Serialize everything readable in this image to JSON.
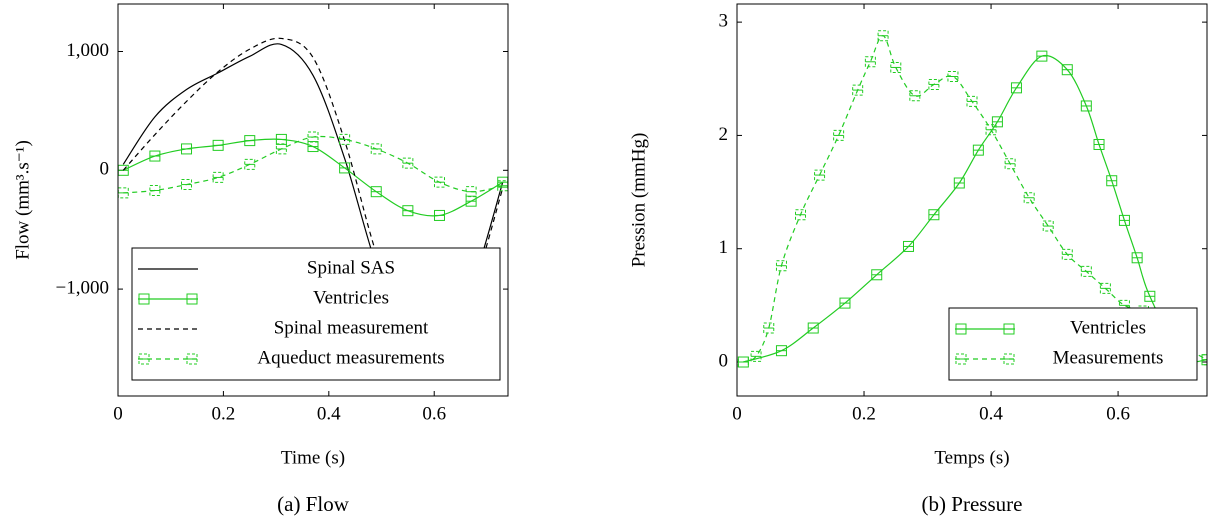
{
  "chart_data": [
    {
      "type": "line",
      "caption": "(a) Flow",
      "xlabel": "Time (s)",
      "ylabel": "Flow (mm³.s⁻¹)",
      "xlim": [
        0,
        0.74
      ],
      "ylim": [
        -1900,
        1400
      ],
      "xticks": [
        0,
        0.2,
        0.4,
        0.6
      ],
      "yticks": [
        {
          "value": -1000,
          "label": "−1,000"
        },
        0,
        {
          "value": 1000,
          "label": "1,000"
        }
      ],
      "legend": "lower left",
      "series": [
        {
          "name": "Spinal SAS",
          "color": "#000000",
          "style": "solid",
          "marker": "none",
          "x": [
            0.01,
            0.07,
            0.13,
            0.19,
            0.25,
            0.31,
            0.37,
            0.43,
            0.49,
            0.55,
            0.61,
            0.67,
            0.73
          ],
          "values": [
            50,
            450,
            680,
            820,
            960,
            1060,
            800,
            100,
            -800,
            -1450,
            -1550,
            -1000,
            -100
          ]
        },
        {
          "name": "Ventricles",
          "color": "#22cc22",
          "style": "solid",
          "marker": "square",
          "x": [
            0.01,
            0.07,
            0.13,
            0.19,
            0.25,
            0.31,
            0.37,
            0.43,
            0.49,
            0.55,
            0.61,
            0.67,
            0.73
          ],
          "values": [
            0,
            120,
            180,
            210,
            250,
            260,
            200,
            20,
            -180,
            -340,
            -380,
            -260,
            -100
          ]
        },
        {
          "name": "Spinal measurement",
          "color": "#000000",
          "style": "dashed",
          "marker": "none",
          "x": [
            0.01,
            0.07,
            0.13,
            0.19,
            0.25,
            0.31,
            0.37,
            0.43,
            0.49,
            0.55,
            0.61,
            0.67,
            0.73
          ],
          "values": [
            0,
            300,
            580,
            830,
            1020,
            1110,
            950,
            250,
            -700,
            -1400,
            -1550,
            -1050,
            -150
          ]
        },
        {
          "name": "Aqueduct measurements",
          "color": "#22cc22",
          "style": "dashed",
          "marker": "square",
          "x": [
            0.01,
            0.07,
            0.13,
            0.19,
            0.25,
            0.31,
            0.37,
            0.43,
            0.49,
            0.55,
            0.61,
            0.67,
            0.73
          ],
          "values": [
            -190,
            -170,
            -120,
            -60,
            50,
            180,
            280,
            260,
            180,
            60,
            -100,
            -180,
            -130
          ]
        }
      ]
    },
    {
      "type": "line",
      "caption": "(b) Pressure",
      "xlabel": "Temps (s)",
      "ylabel": "Pression (mmHg)",
      "xlim": [
        0,
        0.74
      ],
      "ylim": [
        -0.3,
        3.16
      ],
      "xticks": [
        0,
        0.2,
        0.4,
        0.6
      ],
      "yticks": [
        0,
        1,
        2,
        3
      ],
      "legend": "lower right",
      "series": [
        {
          "name": "Ventricles",
          "color": "#22cc22",
          "style": "solid",
          "marker": "square",
          "x": [
            0.01,
            0.07,
            0.12,
            0.17,
            0.22,
            0.27,
            0.31,
            0.35,
            0.38,
            0.41,
            0.44,
            0.48,
            0.52,
            0.55,
            0.57,
            0.59,
            0.61,
            0.63,
            0.65,
            0.7,
            0.74
          ],
          "values": [
            0,
            0.1,
            0.3,
            0.52,
            0.77,
            1.02,
            1.3,
            1.58,
            1.87,
            2.12,
            2.42,
            2.7,
            2.58,
            2.26,
            1.92,
            1.6,
            1.25,
            0.92,
            0.58,
            0.05,
            0.02
          ]
        },
        {
          "name": "Measurements",
          "color": "#22cc22",
          "style": "dashed",
          "marker": "square",
          "x": [
            0.01,
            0.03,
            0.05,
            0.07,
            0.1,
            0.13,
            0.16,
            0.19,
            0.21,
            0.23,
            0.25,
            0.28,
            0.31,
            0.34,
            0.37,
            0.4,
            0.43,
            0.46,
            0.49,
            0.52,
            0.55,
            0.58,
            0.61,
            0.64,
            0.67,
            0.7,
            0.74
          ],
          "values": [
            0,
            0.05,
            0.3,
            0.85,
            1.3,
            1.65,
            2.0,
            2.4,
            2.65,
            2.88,
            2.6,
            2.35,
            2.45,
            2.52,
            2.3,
            2.05,
            1.75,
            1.45,
            1.2,
            0.95,
            0.8,
            0.65,
            0.5,
            0.45,
            0.3,
            0.15,
            0.02
          ]
        }
      ]
    }
  ]
}
